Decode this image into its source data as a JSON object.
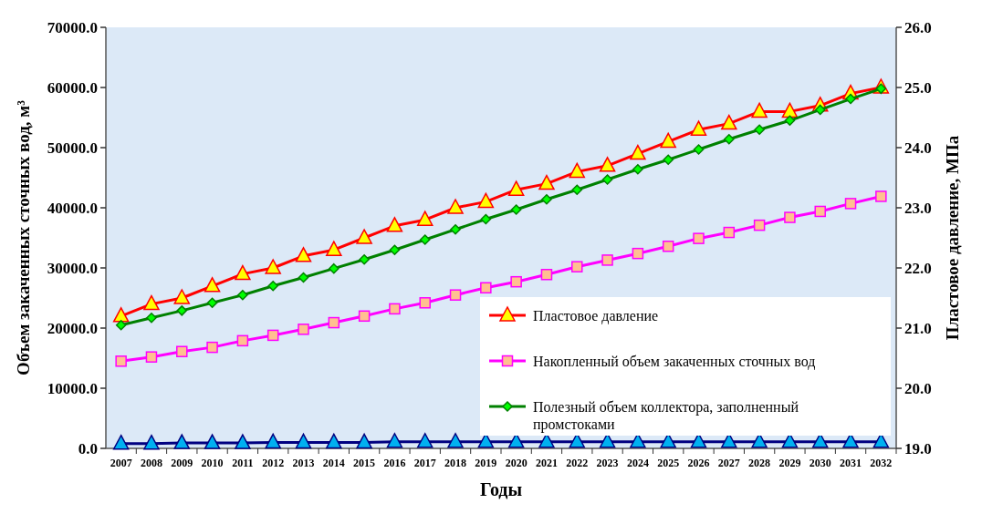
{
  "chart_data": {
    "type": "line",
    "xlabel": "Годы",
    "ylabel": "Объем закаченных сточных вод, м³",
    "y2label": "Пластовое давление, МПа",
    "categories": [
      "2007",
      "2008",
      "2009",
      "2010",
      "2011",
      "2012",
      "2013",
      "2014",
      "2015",
      "2016",
      "2017",
      "2018",
      "2019",
      "2020",
      "2021",
      "2022",
      "2023",
      "2024",
      "2025",
      "2026",
      "2027",
      "2028",
      "2029",
      "2030",
      "2031",
      "2032"
    ],
    "ylim": [
      0,
      70000
    ],
    "yticks": [
      {
        "value": 0,
        "label": "0.0"
      },
      {
        "value": 10000,
        "label": "10000.0"
      },
      {
        "value": 20000,
        "label": "20000.0"
      },
      {
        "value": 30000,
        "label": "30000.0"
      },
      {
        "value": 40000,
        "label": "40000.0"
      },
      {
        "value": 50000,
        "label": "50000.0"
      },
      {
        "value": 60000,
        "label": "60000.0"
      },
      {
        "value": 70000,
        "label": "70000.0"
      }
    ],
    "y2lim": [
      19,
      26
    ],
    "y2ticks": [
      {
        "value": 19,
        "label": "19.0"
      },
      {
        "value": 20,
        "label": "20.0"
      },
      {
        "value": 21,
        "label": "21.0"
      },
      {
        "value": 22,
        "label": "22.0"
      },
      {
        "value": 23,
        "label": "23.0"
      },
      {
        "value": 24,
        "label": "24.0"
      },
      {
        "value": 25,
        "label": "25.0"
      },
      {
        "value": 26,
        "label": "26.0"
      }
    ],
    "legend": "bottom right",
    "grid": false,
    "line_style": "solid",
    "series": [
      {
        "name": "Пластовое давление",
        "color": "#ff0000",
        "axis": "y2",
        "marker": "triangle",
        "values": [
          21.2,
          21.4,
          21.5,
          21.7,
          21.9,
          22.0,
          22.2,
          22.3,
          22.5,
          22.7,
          22.8,
          23.0,
          23.1,
          23.3,
          23.4,
          23.6,
          23.7,
          23.9,
          24.1,
          24.3,
          24.4,
          24.6,
          24.6,
          24.7,
          24.9,
          25.0
        ]
      },
      {
        "name": "Накопленный объем закаченных сточных вод",
        "color": "#ff00ff",
        "marker": "square",
        "values": [
          14500,
          15200,
          16100,
          16800,
          17900,
          18800,
          19800,
          20900,
          22000,
          23200,
          24200,
          25500,
          26700,
          27700,
          28900,
          30200,
          31300,
          32400,
          33600,
          34900,
          35900,
          37100,
          38400,
          39400,
          40700,
          41900
        ]
      },
      {
        "name": "Полезный объем коллектора, заполненный промстоками",
        "color": "#008000",
        "marker": "diamond",
        "values": [
          20500,
          21700,
          22900,
          24200,
          25500,
          27000,
          28400,
          29900,
          31400,
          33000,
          34700,
          36400,
          38100,
          39700,
          41400,
          43000,
          44700,
          46400,
          48000,
          49700,
          51400,
          53000,
          54500,
          56300,
          58100,
          59800
        ]
      },
      {
        "color": "#000080",
        "marker": "triangle",
        "values": [
          800,
          800,
          900,
          900,
          900,
          1000,
          1000,
          1000,
          1000,
          1100,
          1100,
          1100,
          1100,
          1100,
          1100,
          1100,
          1100,
          1100,
          1100,
          1100,
          1100,
          1100,
          1100,
          1100,
          1100,
          1100
        ]
      }
    ]
  }
}
